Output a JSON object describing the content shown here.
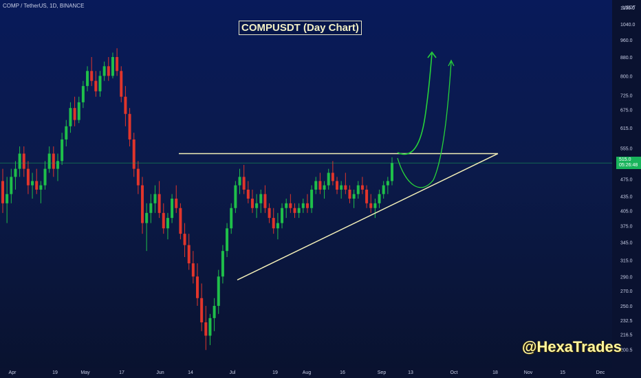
{
  "header": {
    "symbol_label": "COMP / TetherUS, 1D, BINANCE",
    "title": "COMPUSDT (Day Chart)",
    "watermark": "@HexaTrades",
    "currency": "USDT"
  },
  "price_tag": {
    "price": "515.0",
    "countdown": "05:26:48"
  },
  "colors": {
    "up": "#1fbf4a",
    "down": "#e0352b",
    "trendline": "#f3efb8",
    "projection": "#27d33a",
    "price_line": "#18b35b"
  },
  "chart_data": {
    "type": "candlestick",
    "title": "COMPUSDT (Day Chart)",
    "x_ticks": [
      "Apr",
      "19",
      "May",
      "17",
      "Jun",
      "14",
      "Jul",
      "19",
      "Aug",
      "16",
      "Sep",
      "13",
      "Oct",
      "18",
      "Nov",
      "15",
      "Dec"
    ],
    "y_ticks": [
      200.5,
      216.5,
      232.5,
      250.0,
      270.0,
      290.0,
      315.0,
      345.0,
      375.0,
      405.0,
      435.0,
      475.0,
      515.0,
      555.0,
      615.0,
      675.0,
      725.0,
      800.0,
      880.0,
      960.0,
      1040.0,
      1130.0
    ],
    "ylim": [
      190,
      1150
    ],
    "y_scale": "log",
    "current_price": 515.0,
    "key_levels": {
      "resistance": 540
    },
    "ohlc": [
      [
        470,
        500,
        400,
        420
      ],
      [
        420,
        480,
        380,
        440
      ],
      [
        440,
        500,
        420,
        480
      ],
      [
        480,
        520,
        450,
        500
      ],
      [
        500,
        560,
        480,
        540
      ],
      [
        540,
        560,
        480,
        500
      ],
      [
        500,
        520,
        440,
        460
      ],
      [
        460,
        490,
        430,
        470
      ],
      [
        470,
        500,
        440,
        450
      ],
      [
        450,
        470,
        420,
        460
      ],
      [
        460,
        520,
        450,
        500
      ],
      [
        500,
        560,
        490,
        540
      ],
      [
        540,
        560,
        480,
        500
      ],
      [
        500,
        540,
        470,
        520
      ],
      [
        520,
        600,
        510,
        580
      ],
      [
        580,
        640,
        560,
        620
      ],
      [
        620,
        700,
        600,
        680
      ],
      [
        680,
        720,
        620,
        640
      ],
      [
        640,
        720,
        630,
        700
      ],
      [
        700,
        780,
        680,
        760
      ],
      [
        760,
        840,
        740,
        820
      ],
      [
        820,
        880,
        760,
        780
      ],
      [
        780,
        820,
        720,
        740
      ],
      [
        740,
        820,
        720,
        800
      ],
      [
        800,
        860,
        780,
        840
      ],
      [
        840,
        880,
        780,
        800
      ],
      [
        800,
        900,
        790,
        880
      ],
      [
        880,
        920,
        800,
        820
      ],
      [
        820,
        840,
        700,
        720
      ],
      [
        720,
        760,
        620,
        660
      ],
      [
        660,
        680,
        560,
        580
      ],
      [
        580,
        600,
        480,
        500
      ],
      [
        500,
        520,
        440,
        460
      ],
      [
        460,
        480,
        360,
        380
      ],
      [
        380,
        420,
        330,
        400
      ],
      [
        400,
        440,
        380,
        420
      ],
      [
        420,
        460,
        400,
        440
      ],
      [
        440,
        470,
        390,
        400
      ],
      [
        400,
        420,
        360,
        370
      ],
      [
        370,
        400,
        350,
        390
      ],
      [
        390,
        440,
        380,
        430
      ],
      [
        430,
        460,
        400,
        410
      ],
      [
        410,
        420,
        350,
        360
      ],
      [
        360,
        380,
        320,
        340
      ],
      [
        340,
        360,
        300,
        310
      ],
      [
        310,
        330,
        280,
        290
      ],
      [
        290,
        310,
        250,
        260
      ],
      [
        260,
        280,
        220,
        230
      ],
      [
        230,
        250,
        200,
        215
      ],
      [
        215,
        240,
        205,
        235
      ],
      [
        235,
        260,
        220,
        250
      ],
      [
        250,
        300,
        240,
        290
      ],
      [
        290,
        340,
        280,
        330
      ],
      [
        330,
        380,
        320,
        370
      ],
      [
        370,
        420,
        360,
        410
      ],
      [
        410,
        470,
        400,
        460
      ],
      [
        460,
        500,
        440,
        480
      ],
      [
        480,
        510,
        440,
        450
      ],
      [
        450,
        470,
        420,
        430
      ],
      [
        430,
        450,
        400,
        410
      ],
      [
        410,
        440,
        390,
        420
      ],
      [
        420,
        450,
        400,
        440
      ],
      [
        440,
        460,
        400,
        410
      ],
      [
        410,
        420,
        380,
        390
      ],
      [
        390,
        410,
        360,
        370
      ],
      [
        370,
        400,
        350,
        380
      ],
      [
        380,
        420,
        370,
        410
      ],
      [
        410,
        430,
        390,
        420
      ],
      [
        420,
        440,
        400,
        410
      ],
      [
        410,
        420,
        390,
        400
      ],
      [
        400,
        420,
        390,
        410
      ],
      [
        410,
        430,
        400,
        420
      ],
      [
        420,
        440,
        400,
        410
      ],
      [
        410,
        460,
        400,
        450
      ],
      [
        450,
        480,
        440,
        470
      ],
      [
        470,
        490,
        440,
        450
      ],
      [
        450,
        470,
        430,
        460
      ],
      [
        460,
        500,
        450,
        490
      ],
      [
        490,
        520,
        460,
        470
      ],
      [
        470,
        480,
        440,
        450
      ],
      [
        450,
        470,
        430,
        460
      ],
      [
        460,
        490,
        440,
        450
      ],
      [
        450,
        460,
        420,
        430
      ],
      [
        430,
        450,
        410,
        440
      ],
      [
        440,
        470,
        430,
        460
      ],
      [
        460,
        480,
        440,
        450
      ],
      [
        450,
        460,
        410,
        420
      ],
      [
        420,
        440,
        400,
        410
      ],
      [
        410,
        430,
        390,
        420
      ],
      [
        420,
        450,
        410,
        440
      ],
      [
        440,
        470,
        430,
        460
      ],
      [
        460,
        480,
        440,
        470
      ],
      [
        470,
        530,
        460,
        515
      ]
    ],
    "annotations": [
      {
        "type": "horizontal_resistance",
        "value": 540
      },
      {
        "type": "ascending_support"
      },
      {
        "type": "projection_arrows",
        "count": 2
      }
    ]
  }
}
